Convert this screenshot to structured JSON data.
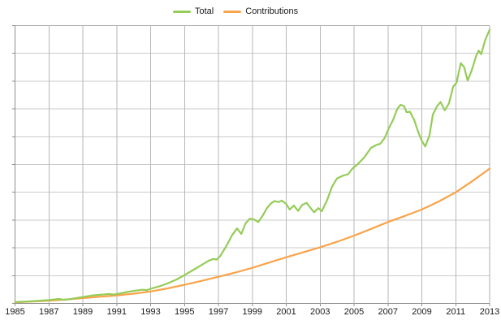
{
  "chart_data": {
    "type": "line",
    "title": "",
    "x_axis": {
      "min": 1985,
      "max": 2013,
      "tick_interval": 2,
      "tick_labels": [
        "1985",
        "1987",
        "1989",
        "1991",
        "1993",
        "1995",
        "1997",
        "1999",
        "2001",
        "2003",
        "2005",
        "2007",
        "2009",
        "2011",
        "2013"
      ]
    },
    "y_axis": {
      "min": 0,
      "max": 10,
      "grid_interval": 1,
      "tick_labels_visible": false,
      "note": "horizontal gridlines unlabeled; values in grid units"
    },
    "grid": true,
    "legend": {
      "position": "top-center"
    },
    "colors": {
      "background": "#FFFFFF",
      "grid_horizontal": "#CBCBCB",
      "grid_vertical": "#B7B7B7",
      "axis": "#8E8E8E",
      "border": "#ACACAC",
      "text": "#1A1A1A"
    },
    "series": [
      {
        "name": "Total",
        "color": "#95CC58",
        "points": [
          [
            1985.0,
            0.05
          ],
          [
            1985.5,
            0.06
          ],
          [
            1986.0,
            0.08
          ],
          [
            1986.5,
            0.1
          ],
          [
            1987.0,
            0.12
          ],
          [
            1987.6,
            0.16
          ],
          [
            1987.85,
            0.13
          ],
          [
            1988.2,
            0.15
          ],
          [
            1988.6,
            0.19
          ],
          [
            1989.0,
            0.23
          ],
          [
            1989.5,
            0.28
          ],
          [
            1990.0,
            0.31
          ],
          [
            1990.55,
            0.34
          ],
          [
            1990.8,
            0.32
          ],
          [
            1991.2,
            0.36
          ],
          [
            1991.6,
            0.41
          ],
          [
            1992.0,
            0.45
          ],
          [
            1992.5,
            0.49
          ],
          [
            1992.8,
            0.48
          ],
          [
            1993.0,
            0.53
          ],
          [
            1993.5,
            0.61
          ],
          [
            1994.0,
            0.72
          ],
          [
            1994.5,
            0.85
          ],
          [
            1995.0,
            1.02
          ],
          [
            1995.5,
            1.2
          ],
          [
            1996.0,
            1.38
          ],
          [
            1996.4,
            1.53
          ],
          [
            1996.7,
            1.6
          ],
          [
            1996.9,
            1.58
          ],
          [
            1997.1,
            1.7
          ],
          [
            1997.5,
            2.1
          ],
          [
            1997.8,
            2.45
          ],
          [
            1998.1,
            2.7
          ],
          [
            1998.35,
            2.5
          ],
          [
            1998.6,
            2.88
          ],
          [
            1998.85,
            3.05
          ],
          [
            1999.1,
            3.02
          ],
          [
            1999.35,
            2.93
          ],
          [
            1999.6,
            3.15
          ],
          [
            1999.85,
            3.42
          ],
          [
            2000.1,
            3.6
          ],
          [
            2000.3,
            3.68
          ],
          [
            2000.55,
            3.65
          ],
          [
            2000.75,
            3.7
          ],
          [
            2001.0,
            3.58
          ],
          [
            2001.2,
            3.38
          ],
          [
            2001.45,
            3.52
          ],
          [
            2001.7,
            3.33
          ],
          [
            2001.95,
            3.55
          ],
          [
            2002.2,
            3.62
          ],
          [
            2002.45,
            3.42
          ],
          [
            2002.65,
            3.28
          ],
          [
            2002.9,
            3.43
          ],
          [
            2003.1,
            3.32
          ],
          [
            2003.4,
            3.7
          ],
          [
            2003.7,
            4.2
          ],
          [
            2004.0,
            4.5
          ],
          [
            2004.35,
            4.6
          ],
          [
            2004.65,
            4.65
          ],
          [
            2004.9,
            4.85
          ],
          [
            2005.2,
            5.0
          ],
          [
            2005.6,
            5.25
          ],
          [
            2006.0,
            5.6
          ],
          [
            2006.3,
            5.7
          ],
          [
            2006.55,
            5.75
          ],
          [
            2006.8,
            5.95
          ],
          [
            2007.05,
            6.3
          ],
          [
            2007.3,
            6.6
          ],
          [
            2007.55,
            7.0
          ],
          [
            2007.75,
            7.15
          ],
          [
            2007.95,
            7.1
          ],
          [
            2008.1,
            6.88
          ],
          [
            2008.3,
            6.9
          ],
          [
            2008.55,
            6.6
          ],
          [
            2008.8,
            6.15
          ],
          [
            2009.0,
            5.85
          ],
          [
            2009.2,
            5.65
          ],
          [
            2009.45,
            6.05
          ],
          [
            2009.65,
            6.8
          ],
          [
            2009.9,
            7.1
          ],
          [
            2010.1,
            7.25
          ],
          [
            2010.35,
            6.95
          ],
          [
            2010.6,
            7.2
          ],
          [
            2010.85,
            7.8
          ],
          [
            2011.05,
            7.95
          ],
          [
            2011.3,
            8.65
          ],
          [
            2011.5,
            8.5
          ],
          [
            2011.7,
            8.02
          ],
          [
            2011.95,
            8.4
          ],
          [
            2012.2,
            8.9
          ],
          [
            2012.35,
            9.1
          ],
          [
            2012.5,
            8.97
          ],
          [
            2012.75,
            9.5
          ],
          [
            2013.0,
            9.85
          ]
        ]
      },
      {
        "name": "Contributions",
        "color": "#F9A34A",
        "points": [
          [
            1985,
            0.04
          ],
          [
            1986,
            0.07
          ],
          [
            1987,
            0.1
          ],
          [
            1988,
            0.14
          ],
          [
            1989,
            0.19
          ],
          [
            1990,
            0.24
          ],
          [
            1991,
            0.29
          ],
          [
            1992,
            0.35
          ],
          [
            1993,
            0.43
          ],
          [
            1994,
            0.54
          ],
          [
            1995,
            0.67
          ],
          [
            1996,
            0.81
          ],
          [
            1997,
            0.96
          ],
          [
            1998,
            1.11
          ],
          [
            1999,
            1.28
          ],
          [
            2000,
            1.47
          ],
          [
            2001,
            1.66
          ],
          [
            2002,
            1.84
          ],
          [
            2003,
            2.02
          ],
          [
            2004,
            2.22
          ],
          [
            2005,
            2.44
          ],
          [
            2006,
            2.68
          ],
          [
            2007,
            2.93
          ],
          [
            2008,
            3.15
          ],
          [
            2009,
            3.38
          ],
          [
            2010,
            3.67
          ],
          [
            2011,
            4.0
          ],
          [
            2012,
            4.41
          ],
          [
            2013,
            4.85
          ]
        ]
      }
    ]
  }
}
